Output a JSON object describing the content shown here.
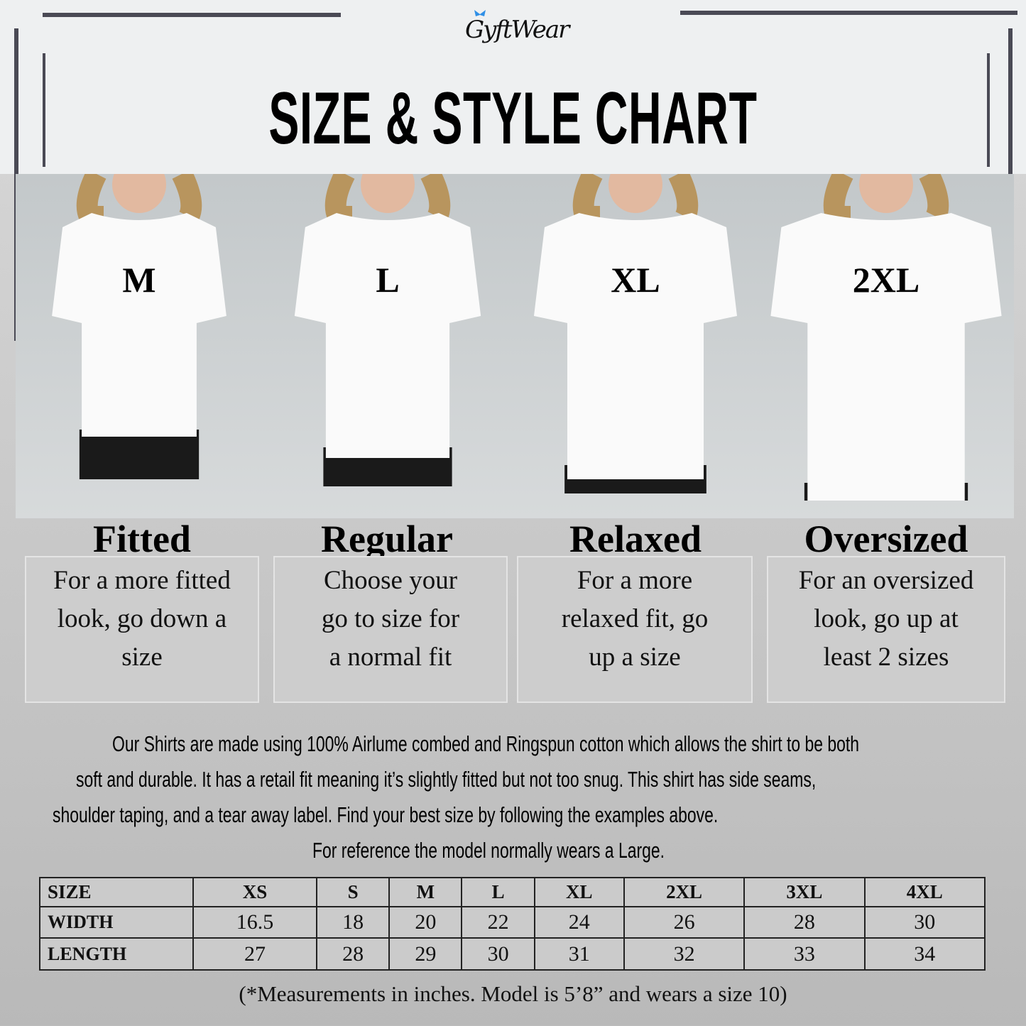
{
  "brand": "GyftWear",
  "title": "SIZE & STYLE CHART",
  "styles": [
    {
      "size": "M",
      "fit": "Fitted",
      "desc": [
        "For a more fitted",
        "look, go down a",
        "size"
      ]
    },
    {
      "size": "L",
      "fit": "Regular",
      "desc": [
        "Choose your",
        "go to size for",
        "a normal fit"
      ]
    },
    {
      "size": "XL",
      "fit": "Relaxed",
      "desc": [
        "For a more",
        "relaxed fit, go",
        "up a size"
      ]
    },
    {
      "size": "2XL",
      "fit": "Oversized",
      "desc": [
        "For an oversized",
        "look, go up at",
        "least 2 sizes"
      ]
    }
  ],
  "description": [
    "Our Shirts are made using 100% Airlume combed and Ringspun cotton which allows the shirt to be both",
    "soft and durable. It has a retail fit meaning it’s slightly fitted but not too snug. This shirt has side seams,",
    "shoulder taping, and a tear away label. Find your best size by following the examples above.",
    "For reference the model normally wears a Large."
  ],
  "size_table": {
    "headers": [
      "SIZE",
      "XS",
      "S",
      "M",
      "L",
      "XL",
      "2XL",
      "3XL",
      "4XL"
    ],
    "rows": [
      [
        "WIDTH",
        "16.5",
        "18",
        "20",
        "22",
        "24",
        "26",
        "28",
        "30"
      ],
      [
        "LENGTH",
        "27",
        "28",
        "29",
        "30",
        "31",
        "32",
        "33",
        "34"
      ]
    ]
  },
  "footnote": "(*Measurements in inches. Model is 5’8” and wears a size 10)",
  "colors": {
    "accent": "#2f8fe6",
    "frame": "#4a4a55"
  }
}
